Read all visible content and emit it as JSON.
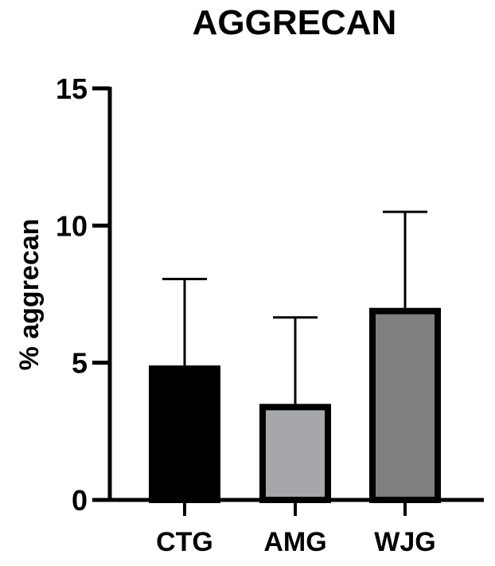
{
  "chart_data": {
    "type": "bar",
    "title": "AGGRECAN",
    "xlabel": "",
    "ylabel": "% aggrecan",
    "ylim": [
      0,
      15
    ],
    "yticks": [
      0,
      5,
      10,
      15
    ],
    "categories": [
      "CTG",
      "AMG",
      "WJG"
    ],
    "values": [
      4.9,
      3.5,
      7.0
    ],
    "error_upper": [
      8.05,
      6.65,
      10.5
    ],
    "colors": [
      "#000000",
      "#a6a7ab",
      "#7f7f7f"
    ],
    "grid": false,
    "legend": "none"
  }
}
